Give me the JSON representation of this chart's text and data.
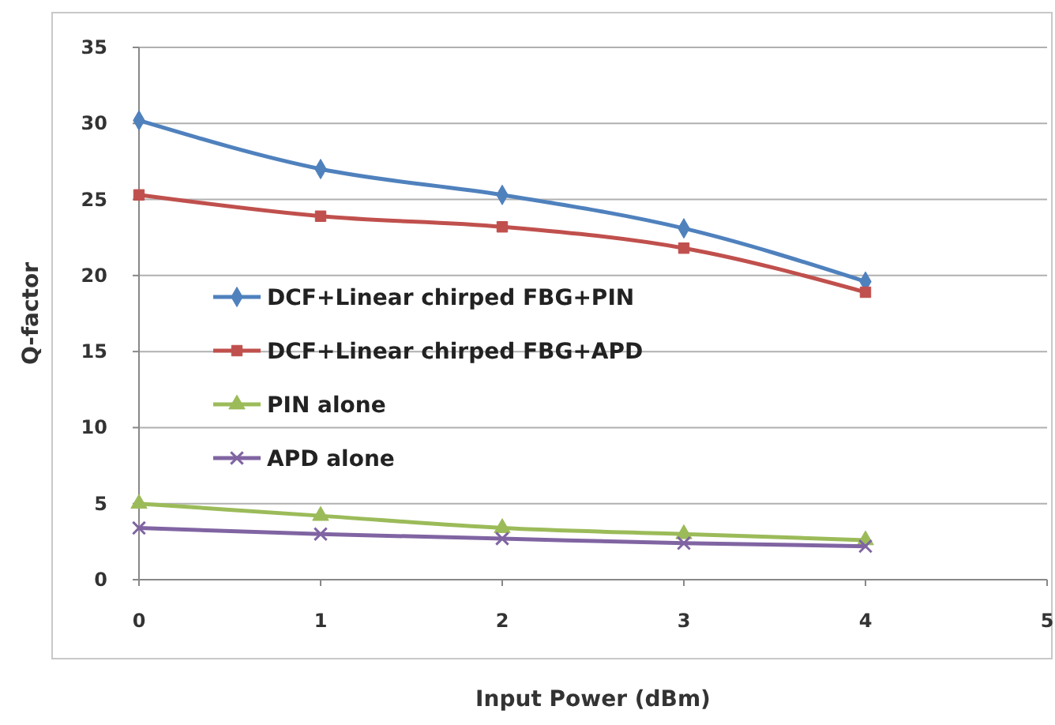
{
  "chart_data": {
    "type": "line",
    "xlabel": "Input Power (dBm)",
    "ylabel": "Q-factor",
    "x": [
      0,
      1,
      2,
      3,
      4
    ],
    "series": [
      {
        "name": "DCF+Linear chirped FBG+PIN",
        "color": "#4f81bd",
        "marker": "diamond",
        "values": [
          30.2,
          27.0,
          25.3,
          23.1,
          19.6
        ]
      },
      {
        "name": "DCF+Linear chirped FBG+APD",
        "color": "#c0504d",
        "marker": "square",
        "values": [
          25.3,
          23.9,
          23.2,
          21.8,
          18.9
        ]
      },
      {
        "name": "PIN alone",
        "color": "#9bbb59",
        "marker": "triangle",
        "values": [
          5.0,
          4.2,
          3.4,
          3.0,
          2.6
        ]
      },
      {
        "name": "APD alone",
        "color": "#8064a2",
        "marker": "cross",
        "values": [
          3.4,
          3.0,
          2.7,
          2.4,
          2.2
        ]
      }
    ],
    "xlim": [
      0,
      5
    ],
    "xticks": [
      0,
      1,
      2,
      3,
      4,
      5
    ],
    "ylim": [
      0,
      35
    ],
    "yticks": [
      0,
      5,
      10,
      15,
      20,
      25,
      30,
      35
    ],
    "grid": "y",
    "legend": "left"
  }
}
